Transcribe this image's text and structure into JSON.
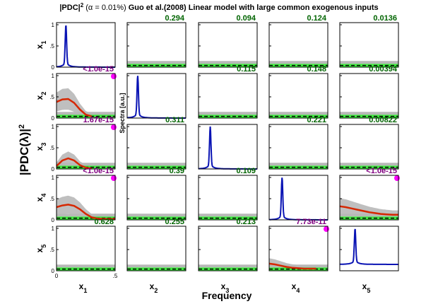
{
  "title": {
    "prefix": "|PDC|",
    "sup": "2",
    "alpha": " (α = 0.01%) ",
    "rest": "Guo et al.(2008) Linear model with large common exogenous inputs"
  },
  "ylabel": "|PDC(λ)|",
  "ylabel_sup": "2",
  "xlabel": "Frequency",
  "spectra_label": "Spectra [a.u.]",
  "var_names": [
    "x",
    "x",
    "x",
    "x",
    "x"
  ],
  "var_subs": [
    "1",
    "2",
    "3",
    "4",
    "5"
  ],
  "tick_labels": {
    "y0": "0",
    "y05": ".5",
    "y1": "1",
    "x0": "0",
    "x05": ".5"
  },
  "colors": {
    "significant_pval": "#800080",
    "nonsignificant_pval": "#006400",
    "pdc_line": "#d62700",
    "spectrum_line": "#0a14b4",
    "confidence_band": "#b8b8b8",
    "threshold_band": "#3ee83e",
    "marker": "#ff00ff"
  },
  "chart_data": {
    "type": "line",
    "grid": false,
    "xlim": [
      0,
      0.5
    ],
    "ylim": [
      0,
      1.05
    ],
    "layout": "5x5 matrix; row = target, column = source; diagonal = power spectra",
    "pvalues": [
      [
        null,
        "0.294",
        "0.094",
        "0.124",
        "0.0136"
      ],
      [
        "<1.0e-15",
        null,
        "0.115",
        "0.148",
        "0.00394"
      ],
      [
        "1.67e-15",
        "0.311",
        null,
        "0.221",
        "0.00822"
      ],
      [
        "<1.0e-15",
        "0.39",
        "0.109",
        null,
        "<1.0e-15"
      ],
      [
        "0.628",
        "0.255",
        "0.213",
        "7.73e-11",
        null
      ]
    ],
    "significant": [
      [
        false,
        false,
        false,
        false,
        false
      ],
      [
        true,
        false,
        false,
        false,
        false
      ],
      [
        true,
        false,
        false,
        false,
        false
      ],
      [
        true,
        false,
        false,
        false,
        true
      ],
      [
        false,
        false,
        false,
        true,
        false
      ]
    ],
    "spectra": [
      {
        "peak_freq": 0.08,
        "peak": 1.0,
        "baseline": 0.0
      },
      {
        "peak_freq": 0.09,
        "peak": 1.0,
        "baseline": 0.0
      },
      {
        "peak_freq": 0.1,
        "peak": 1.0,
        "baseline": 0.0
      },
      {
        "peak_freq": 0.11,
        "peak": 1.0,
        "baseline": 0.0
      },
      {
        "peak_freq": 0.13,
        "peak": 1.0,
        "baseline": 0.15
      }
    ],
    "significant_pdc": {
      "2-1": {
        "x": [
          0,
          0.05,
          0.1,
          0.15,
          0.2,
          0.25,
          0.3
        ],
        "y": [
          0.38,
          0.44,
          0.45,
          0.36,
          0.2,
          0.08,
          0.04
        ]
      },
      "3-1": {
        "x": [
          0,
          0.05,
          0.1,
          0.15,
          0.2,
          0.25,
          0.3
        ],
        "y": [
          0.07,
          0.2,
          0.25,
          0.2,
          0.09,
          0.03,
          0.01
        ]
      },
      "4-1": {
        "x": [
          0,
          0.05,
          0.1,
          0.15,
          0.2,
          0.25,
          0.3,
          0.35,
          0.4,
          0.5
        ],
        "y": [
          0.3,
          0.34,
          0.36,
          0.33,
          0.25,
          0.14,
          0.06,
          0.03,
          0.02,
          0.02
        ]
      },
      "4-5": {
        "x": [
          0,
          0.05,
          0.1,
          0.15,
          0.2,
          0.25,
          0.3,
          0.35,
          0.4,
          0.45,
          0.5
        ],
        "y": [
          0.32,
          0.3,
          0.27,
          0.24,
          0.21,
          0.18,
          0.16,
          0.14,
          0.13,
          0.12,
          0.12
        ]
      },
      "5-4": {
        "x": [
          0,
          0.05,
          0.1,
          0.15,
          0.2,
          0.25,
          0.3,
          0.35,
          0.4
        ],
        "y": [
          0.17,
          0.15,
          0.12,
          0.09,
          0.07,
          0.06,
          0.05,
          0.05,
          0.05
        ]
      }
    },
    "threshold_level": 0.04,
    "threshold_band": [
      0.0,
      0.08
    ]
  }
}
